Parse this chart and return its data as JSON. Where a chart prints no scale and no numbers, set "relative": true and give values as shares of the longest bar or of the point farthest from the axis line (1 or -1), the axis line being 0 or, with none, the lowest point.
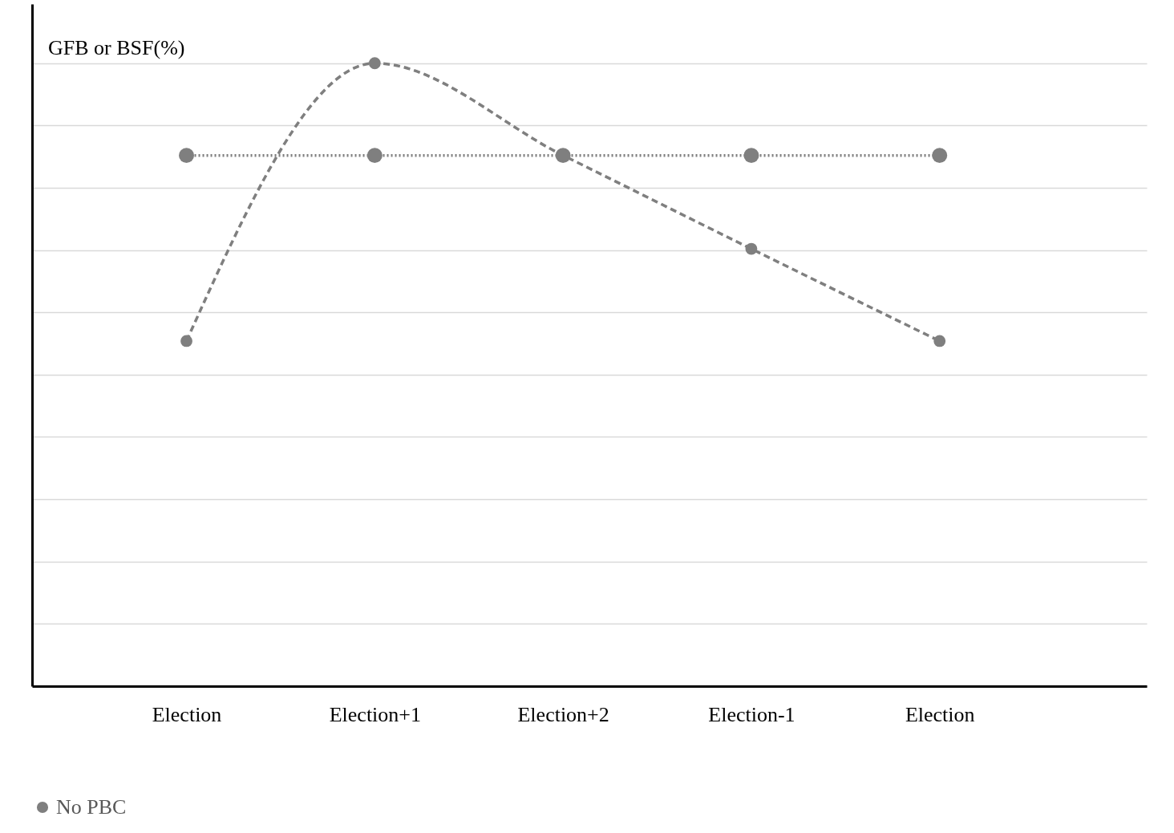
{
  "chart_data": {
    "type": "line",
    "ylabel": "GFB  or BSF(%)",
    "categories": [
      "Election",
      "Election+1",
      "Election+2",
      "Election-1",
      "Election"
    ],
    "relative": true,
    "grid": "y",
    "legend": "bottom",
    "marker": "circle",
    "series": [
      {
        "name": "No PBC",
        "color": "#7f7f7f",
        "line_style": "dotted",
        "values": [
          0.852,
          0.852,
          0.852,
          0.852,
          0.852
        ]
      },
      {
        "color": "#7f7f7f",
        "line_style": "dashed",
        "values": [
          0.554,
          1,
          0.852,
          0.702,
          0.554
        ]
      }
    ]
  }
}
